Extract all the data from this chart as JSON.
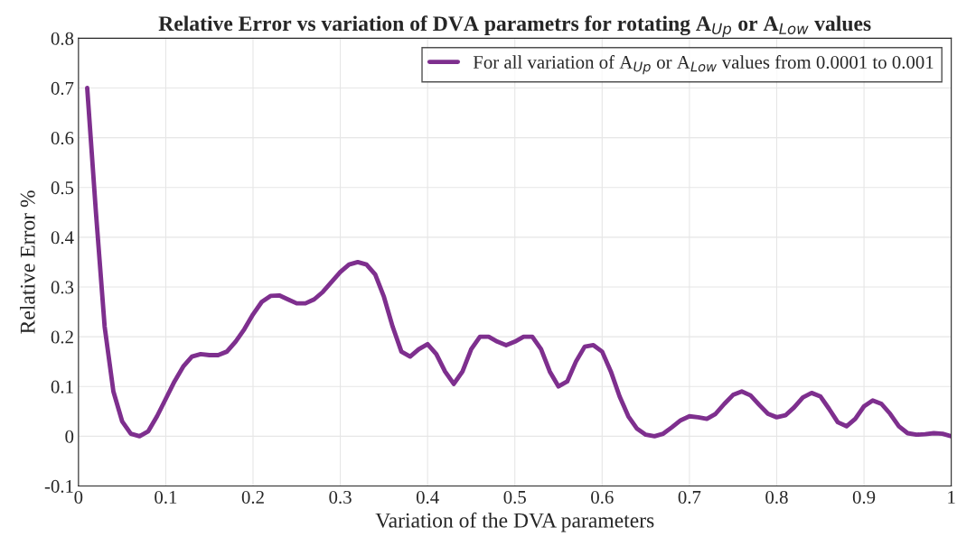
{
  "chart_data": {
    "type": "line",
    "title": "Relative Error vs variation of DVA parametrs for rotating A$_{Up}$ or A$_{Low}$ values",
    "xlabel": "Variation of the DVA parameters",
    "ylabel": "Relative Error %",
    "x": [
      0.01,
      0.02,
      0.03,
      0.04,
      0.05,
      0.06,
      0.07,
      0.08,
      0.09,
      0.1,
      0.11,
      0.12,
      0.13,
      0.14,
      0.15,
      0.16,
      0.17,
      0.18,
      0.19,
      0.2,
      0.21,
      0.22,
      0.23,
      0.24,
      0.25,
      0.26,
      0.27,
      0.28,
      0.29,
      0.3,
      0.31,
      0.32,
      0.33,
      0.34,
      0.35,
      0.36,
      0.37,
      0.38,
      0.39,
      0.4,
      0.41,
      0.42,
      0.43,
      0.44,
      0.45,
      0.46,
      0.47,
      0.48,
      0.49,
      0.5,
      0.51,
      0.52,
      0.53,
      0.54,
      0.55,
      0.56,
      0.57,
      0.58,
      0.59,
      0.6,
      0.61,
      0.62,
      0.63,
      0.64,
      0.65,
      0.66,
      0.67,
      0.68,
      0.69,
      0.7,
      0.71,
      0.72,
      0.73,
      0.74,
      0.75,
      0.76,
      0.77,
      0.78,
      0.79,
      0.8,
      0.81,
      0.82,
      0.83,
      0.84,
      0.85,
      0.86,
      0.87,
      0.88,
      0.89,
      0.9,
      0.91,
      0.92,
      0.93,
      0.94,
      0.95,
      0.96,
      0.97,
      0.98,
      0.99,
      1.0
    ],
    "series": [
      {
        "name": "For all variation of A$_{Up}$ or A$_{Low}$ values from 0.0001 to 0.001",
        "color": "#7e2f8e",
        "values": [
          0.7,
          0.45,
          0.22,
          0.09,
          0.03,
          0.005,
          0.0,
          0.01,
          0.04,
          0.075,
          0.11,
          0.14,
          0.16,
          0.165,
          0.163,
          0.163,
          0.17,
          0.19,
          0.215,
          0.245,
          0.27,
          0.282,
          0.283,
          0.275,
          0.267,
          0.267,
          0.275,
          0.29,
          0.31,
          0.33,
          0.345,
          0.35,
          0.345,
          0.325,
          0.28,
          0.22,
          0.17,
          0.16,
          0.175,
          0.185,
          0.165,
          0.13,
          0.105,
          0.13,
          0.175,
          0.2,
          0.2,
          0.19,
          0.183,
          0.19,
          0.2,
          0.2,
          0.175,
          0.13,
          0.1,
          0.11,
          0.15,
          0.18,
          0.183,
          0.17,
          0.13,
          0.08,
          0.04,
          0.015,
          0.003,
          0.0,
          0.005,
          0.018,
          0.032,
          0.04,
          0.038,
          0.035,
          0.045,
          0.065,
          0.083,
          0.09,
          0.082,
          0.063,
          0.045,
          0.038,
          0.042,
          0.058,
          0.078,
          0.087,
          0.08,
          0.055,
          0.028,
          0.02,
          0.035,
          0.06,
          0.072,
          0.065,
          0.045,
          0.02,
          0.006,
          0.003,
          0.004,
          0.006,
          0.005,
          0.0
        ]
      }
    ],
    "xlim": [
      0,
      1
    ],
    "xticks": [
      0,
      0.1,
      0.2,
      0.3,
      0.4,
      0.5,
      0.6,
      0.7,
      0.8,
      0.9,
      1
    ],
    "ylim": [
      -0.1,
      0.8
    ],
    "yticks": [
      -0.1,
      0,
      0.1,
      0.2,
      0.3,
      0.4,
      0.5,
      0.6,
      0.7,
      0.8
    ],
    "grid": true,
    "legend": "top right",
    "line_style": "solid",
    "marker": "none"
  }
}
